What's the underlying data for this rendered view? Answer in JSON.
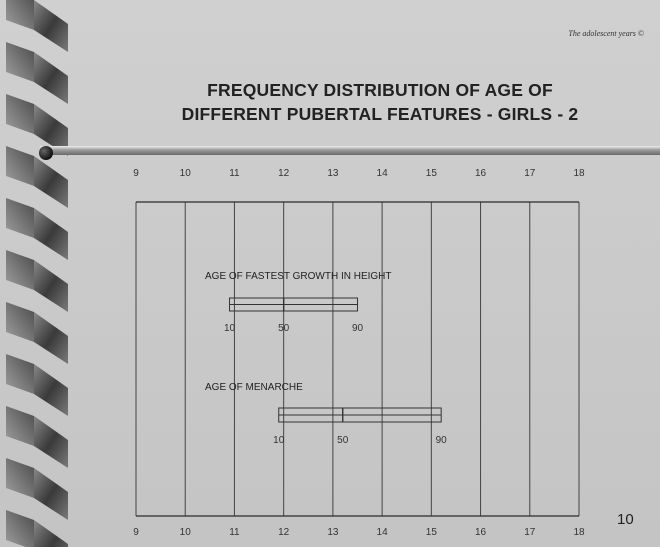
{
  "slide": {
    "header_note": "The adolescent years ©",
    "title_line1": "FREQUENCY DISTRIBUTION OF AGE OF",
    "title_line2": "DIFFERENT PUBERTAL FEATURES - GIRLS - 2",
    "page_number": "10"
  },
  "chart_data": {
    "type": "box",
    "x_ticks": [
      "9",
      "10",
      "11",
      "12",
      "13",
      "14",
      "15",
      "16",
      "17",
      "18"
    ],
    "xlim": [
      9,
      18
    ],
    "grid": true,
    "items": [
      {
        "name": "AGE OF FASTEST GROWTH IN HEIGHT",
        "percentiles": [
          {
            "label": "10",
            "value": 10.9
          },
          {
            "label": "50",
            "value": 12.0
          },
          {
            "label": "90",
            "value": 13.5
          }
        ]
      },
      {
        "name": "AGE OF MENARCHE",
        "percentiles": [
          {
            "label": "10",
            "value": 11.9
          },
          {
            "label": "50",
            "value": 13.2
          },
          {
            "label": "90",
            "value": 15.2
          }
        ]
      }
    ]
  }
}
